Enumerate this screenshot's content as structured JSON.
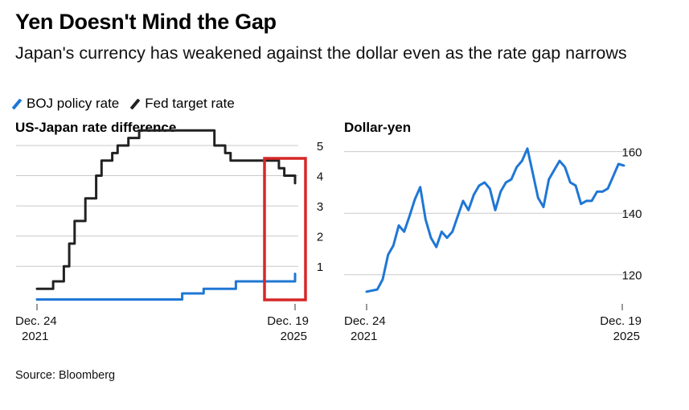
{
  "header": {
    "title": "Yen Doesn't Mind the Gap",
    "subtitle": "Japan's currency has weakened against the dollar even as the rate gap narrows"
  },
  "legend": {
    "items": [
      {
        "label": "BOJ policy rate",
        "color": "#1f77d4"
      },
      {
        "label": "Fed target rate",
        "color": "#222222"
      }
    ]
  },
  "footer": {
    "source": "Source: Bloomberg"
  },
  "highlight_box_color": "#d62728",
  "chart_data": [
    {
      "type": "line",
      "title": "US-Japan rate difference",
      "x_start_label": [
        "Dec. 24",
        "2021"
      ],
      "x_end_label": [
        "Dec. 19",
        "2025"
      ],
      "ylim": [
        -0.3,
        5
      ],
      "yticks": [
        1,
        2,
        3,
        4,
        5
      ],
      "grid": true,
      "x": [
        "2021-12",
        "2022-03",
        "2022-05",
        "2022-06",
        "2022-07",
        "2022-09",
        "2022-11",
        "2022-12",
        "2023-02",
        "2023-03",
        "2023-05",
        "2023-07",
        "2024-03",
        "2024-07",
        "2024-09",
        "2024-11",
        "2024-12",
        "2025-01",
        "2025-09",
        "2025-10",
        "2025-12"
      ],
      "series": [
        {
          "name": "BOJ policy rate",
          "color": "#1f77d4",
          "values": [
            -0.1,
            -0.1,
            -0.1,
            -0.1,
            -0.1,
            -0.1,
            -0.1,
            -0.1,
            -0.1,
            -0.1,
            -0.1,
            -0.1,
            0.1,
            0.25,
            0.25,
            0.25,
            0.25,
            0.5,
            0.5,
            0.5,
            0.75
          ]
        },
        {
          "name": "Fed target rate",
          "color": "#222222",
          "values": [
            0.25,
            0.5,
            1.0,
            1.75,
            2.5,
            3.25,
            4.0,
            4.5,
            4.75,
            5.0,
            5.25,
            5.5,
            5.5,
            5.5,
            5.0,
            4.75,
            4.5,
            4.5,
            4.25,
            4.0,
            3.75
          ]
        }
      ]
    },
    {
      "type": "line",
      "title": "Dollar-yen",
      "x_start_label": [
        "Dec. 24",
        "2021"
      ],
      "x_end_label": [
        "Dec. 19",
        "2025"
      ],
      "ylim": [
        110,
        162
      ],
      "yticks": [
        120,
        140,
        160
      ],
      "grid": true,
      "x": [
        "2021-12",
        "2022-02",
        "2022-03",
        "2022-04",
        "2022-05",
        "2022-06",
        "2022-07",
        "2022-08",
        "2022-09",
        "2022-10",
        "2022-11",
        "2022-12",
        "2023-01",
        "2023-02",
        "2023-03",
        "2023-04",
        "2023-05",
        "2023-06",
        "2023-07",
        "2023-08",
        "2023-09",
        "2023-10",
        "2023-11",
        "2023-12",
        "2024-01",
        "2024-02",
        "2024-03",
        "2024-04",
        "2024-05",
        "2024-06",
        "2024-07",
        "2024-08",
        "2024-09",
        "2024-10",
        "2024-11",
        "2024-12",
        "2025-01",
        "2025-02",
        "2025-03",
        "2025-04",
        "2025-05",
        "2025-06",
        "2025-07",
        "2025-08",
        "2025-09",
        "2025-10",
        "2025-11",
        "2025-12"
      ],
      "series": [
        {
          "name": "Dollar-yen",
          "color": "#1f77d4",
          "values": [
            114.5,
            115.2,
            118.5,
            126.5,
            129.5,
            136,
            134,
            139,
            144.5,
            148.5,
            138,
            132,
            129,
            134,
            132,
            134,
            139,
            144,
            141,
            146,
            149,
            150,
            148,
            141,
            147,
            150,
            151,
            155,
            157,
            161,
            153,
            145,
            142,
            151,
            154,
            157,
            155,
            150,
            149,
            143,
            144,
            144,
            147,
            147,
            148,
            152,
            156,
            155.5
          ]
        }
      ]
    }
  ]
}
